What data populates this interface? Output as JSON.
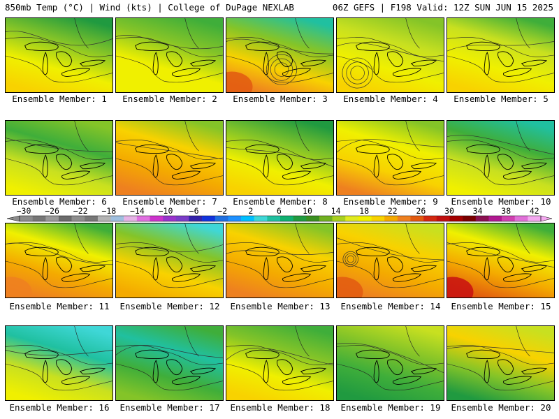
{
  "header": {
    "left": "850mb Temp (°C) | Wind (kts) | College of DuPage NEXLAB",
    "right": "06Z GEFS | F198 Valid: 12Z SUN JUN 15 2025"
  },
  "colorbar": {
    "labels": [
      "-30",
      "-26",
      "-22",
      "-18",
      "-14",
      "-10",
      "-6",
      "-2",
      "2",
      "6",
      "10",
      "14",
      "18",
      "22",
      "26",
      "30",
      "34",
      "38",
      "42"
    ],
    "colors": [
      "#8c8c8c",
      "#777777",
      "#999999",
      "#6b6b6b",
      "#8e8e8e",
      "#777777",
      "#b4b4b4",
      "#9fbfdf",
      "#e6b4e6",
      "#e070e0",
      "#cc33cc",
      "#9933cc",
      "#7a3cc8",
      "#3322aa",
      "#1133dd",
      "#1f6fe0",
      "#1e90ff",
      "#00bfff",
      "#3fd7d7",
      "#20c0a0",
      "#10b070",
      "#209a40",
      "#3a8f20",
      "#70b020",
      "#a8d020",
      "#e0ea20",
      "#f0f000",
      "#f8d200",
      "#f4aa00",
      "#ee8020",
      "#e25a10",
      "#d22810",
      "#c01010",
      "#a30000",
      "#7a0000",
      "#8a1050",
      "#b01890",
      "#d040b0",
      "#e070d8",
      "#f4a8f0"
    ]
  },
  "members": [
    {
      "label": "Ensemble Member: 1"
    },
    {
      "label": "Ensemble Member: 2"
    },
    {
      "label": "Ensemble Member: 3"
    },
    {
      "label": "Ensemble Member: 4"
    },
    {
      "label": "Ensemble Member: 5"
    },
    {
      "label": "Ensemble Member: 6"
    },
    {
      "label": "Ensemble Member: 7"
    },
    {
      "label": "Ensemble Member: 8"
    },
    {
      "label": "Ensemble Member: 9"
    },
    {
      "label": "Ensemble Member: 10"
    },
    {
      "label": "Ensemble Member: 11"
    },
    {
      "label": "Ensemble Member: 12"
    },
    {
      "label": "Ensemble Member: 13"
    },
    {
      "label": "Ensemble Member: 14"
    },
    {
      "label": "Ensemble Member: 15"
    },
    {
      "label": "Ensemble Member: 16"
    },
    {
      "label": "Ensemble Member: 17"
    },
    {
      "label": "Ensemble Member: 18"
    },
    {
      "label": "Ensemble Member: 19"
    },
    {
      "label": "Ensemble Member: 20"
    }
  ],
  "palette": {
    "green_dark": "#209a40",
    "green": "#3fae3a",
    "green_light": "#84c428",
    "yellow_green": "#c8e020",
    "yellow": "#f0f000",
    "yellow_orange": "#f8d200",
    "orange": "#f4aa00",
    "dark_orange": "#ee8020",
    "red_orange": "#e25a10",
    "red": "#c81010",
    "cyan": "#3fd7d7",
    "teal": "#20c0a0"
  }
}
